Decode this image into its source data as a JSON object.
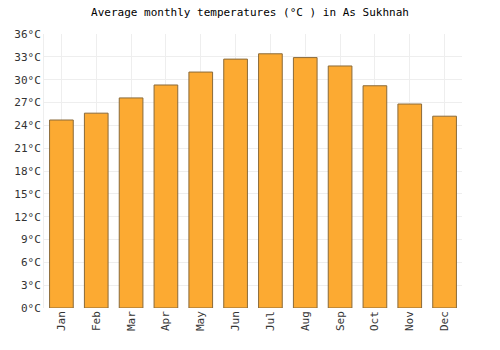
{
  "chart_data": {
    "type": "bar",
    "title": "Average monthly temperatures (°C ) in As Sukhnah",
    "categories": [
      "Jan",
      "Feb",
      "Mar",
      "Apr",
      "May",
      "Jun",
      "Jul",
      "Aug",
      "Sep",
      "Oct",
      "Nov",
      "Dec"
    ],
    "values": [
      24.7,
      25.6,
      27.6,
      29.3,
      31.0,
      32.7,
      33.4,
      32.9,
      31.8,
      29.2,
      26.8,
      25.2
    ],
    "color": "#fcaa32",
    "ylim": [
      0,
      36
    ],
    "yticks": [
      {
        "value": 0,
        "label": "0°C"
      },
      {
        "value": 3,
        "label": "3°C"
      },
      {
        "value": 6,
        "label": "6°C"
      },
      {
        "value": 9,
        "label": "9°C"
      },
      {
        "value": 12,
        "label": "12°C"
      },
      {
        "value": 15,
        "label": "15°C"
      },
      {
        "value": 18,
        "label": "18°C"
      },
      {
        "value": 21,
        "label": "21°C"
      },
      {
        "value": 24,
        "label": "24°C"
      },
      {
        "value": 27,
        "label": "27°C"
      },
      {
        "value": 30,
        "label": "30°C"
      },
      {
        "value": 33,
        "label": "33°C"
      },
      {
        "value": 36,
        "label": "36°C"
      }
    ],
    "grid": true
  }
}
